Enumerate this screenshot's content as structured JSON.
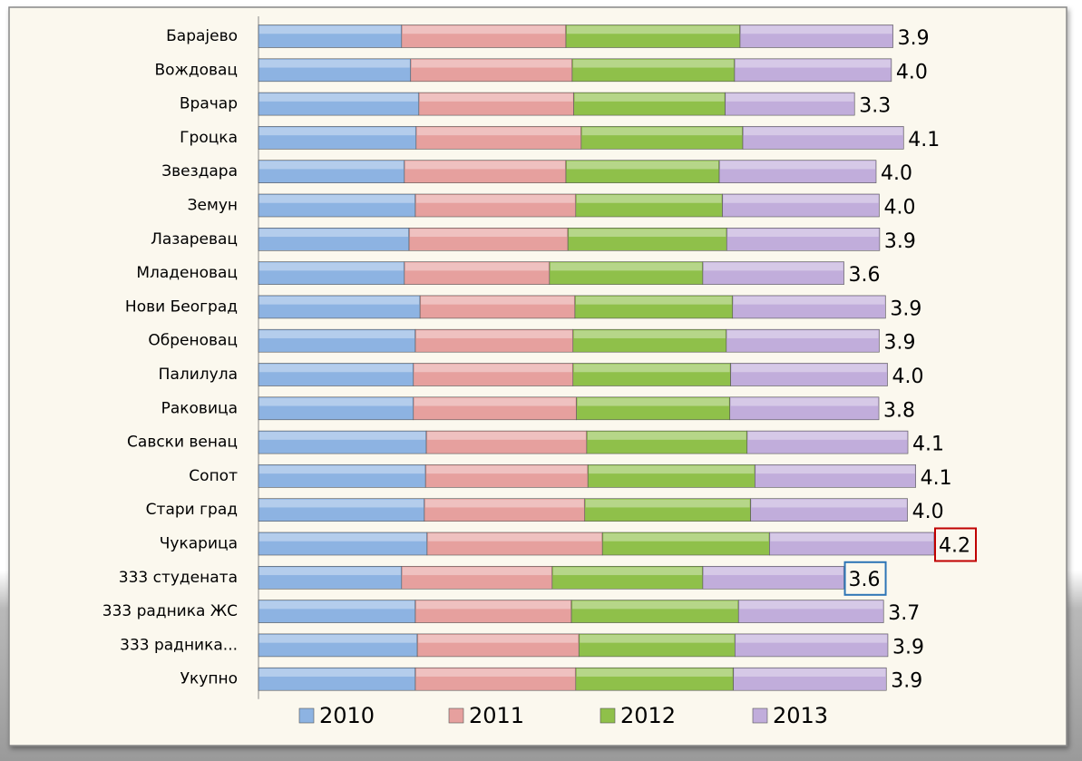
{
  "chart_data": {
    "type": "stacked-bar-horizontal",
    "categories": [
      "Барајево",
      "Вождовац",
      "Врачар",
      "Гроцка",
      "Звездара",
      "Земун",
      "Лазаревац",
      "Младеновац",
      "Нови Београд",
      "Обреновац",
      "Палилула",
      "Раковица",
      "Савски венац",
      "Сопот",
      "Стари град",
      "Чукарица",
      "333 студената",
      "333 радника ЖС",
      "333 радника...",
      "Укупно"
    ],
    "series": [
      {
        "name": "2010",
        "color": "#8db3e2",
        "values": [
          3.65,
          3.88,
          4.09,
          4.02,
          3.72,
          4.0,
          3.84,
          3.72,
          4.12,
          4.0,
          3.95,
          3.95,
          4.28,
          4.26,
          4.23,
          4.3,
          3.65,
          4.0,
          4.05,
          4.0
        ]
      },
      {
        "name": "2011",
        "color": "#e6a09e",
        "values": [
          4.19,
          4.12,
          3.95,
          4.21,
          4.12,
          4.09,
          4.05,
          3.7,
          3.95,
          4.02,
          4.07,
          4.16,
          4.09,
          4.14,
          4.09,
          4.47,
          3.84,
          3.98,
          4.12,
          4.09
        ]
      },
      {
        "name": "2012",
        "color": "#8fc04a",
        "values": [
          4.44,
          4.14,
          3.86,
          4.12,
          3.91,
          3.74,
          4.05,
          3.91,
          4.02,
          3.91,
          4.02,
          3.91,
          4.09,
          4.26,
          4.23,
          4.26,
          3.84,
          4.26,
          3.98,
          4.02
        ]
      },
      {
        "name": "2013",
        "color": "#c1addb",
        "values": [
          3.9,
          4.0,
          3.3,
          4.1,
          4.0,
          4.0,
          3.9,
          3.6,
          3.9,
          3.9,
          4.0,
          3.8,
          4.1,
          4.1,
          4.0,
          4.2,
          3.6,
          3.7,
          3.9,
          3.9
        ],
        "value_labels": [
          "3.9",
          "4.0",
          "3.3",
          "4.1",
          "4.0",
          "4.0",
          "3.9",
          "3.6",
          "3.9",
          "3.9",
          "4.0",
          "3.8",
          "4.1",
          "4.1",
          "4.0",
          "4.2",
          "3.6",
          "3.7",
          "3.9",
          "3.9"
        ]
      }
    ],
    "highlights": [
      {
        "index": 15,
        "color": "#c00000"
      },
      {
        "index": 16,
        "color": "#2e75b6"
      }
    ],
    "legend": "bottom"
  }
}
